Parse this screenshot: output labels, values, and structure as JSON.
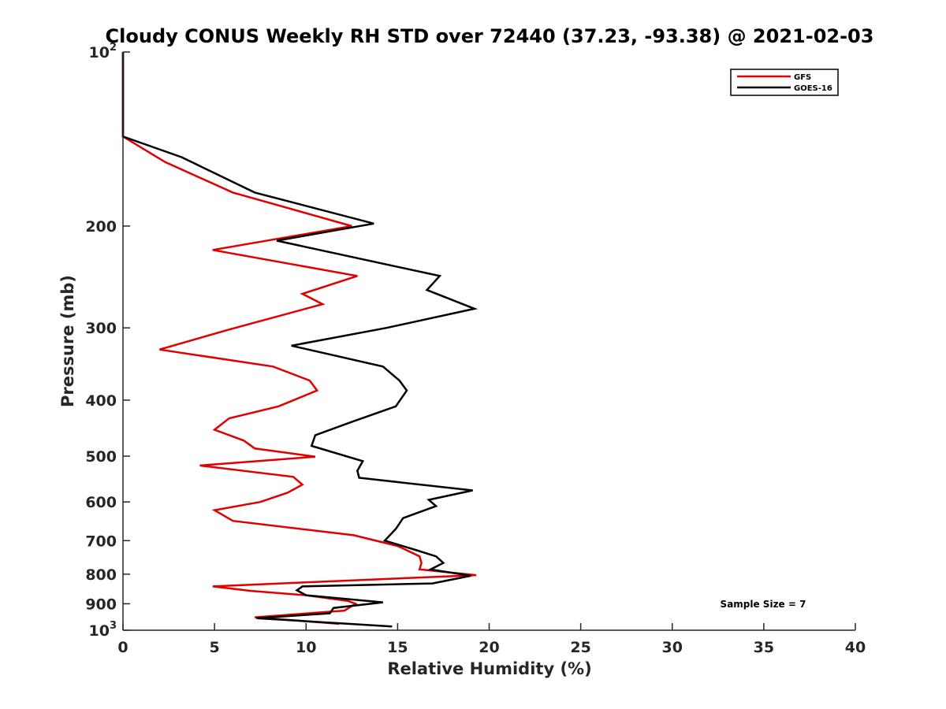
{
  "chart_data": {
    "type": "line",
    "title": "Cloudy CONUS Weekly RH STD over 72440 (37.23, -93.38) @ 2021-02-03",
    "xlabel": "Relative Humidity (%)",
    "ylabel": "Pressure (mb)",
    "xlim": [
      0,
      40
    ],
    "ylim": [
      100,
      1000
    ],
    "y_scale": "log",
    "y_reversed": true,
    "x_ticks": [
      "0",
      "5",
      "10",
      "15",
      "20",
      "25",
      "30",
      "35",
      "40"
    ],
    "y_ticks": [
      {
        "value": 100,
        "base": "10",
        "exp": "2"
      },
      {
        "value": 200,
        "label": "200"
      },
      {
        "value": 300,
        "label": "300"
      },
      {
        "value": 400,
        "label": "400"
      },
      {
        "value": 500,
        "label": "500"
      },
      {
        "value": 600,
        "label": "600"
      },
      {
        "value": 700,
        "label": "700"
      },
      {
        "value": 800,
        "label": "800"
      },
      {
        "value": 900,
        "label": "900"
      },
      {
        "value": 1000,
        "base": "10",
        "exp": "3"
      }
    ],
    "legend_position": "top-right",
    "annotation": "Sample Size = 7",
    "series": [
      {
        "name": "GFS",
        "color": "#e00000",
        "points": [
          [
            11.8,
            975
          ],
          [
            7.2,
            950
          ],
          [
            12.1,
            925
          ],
          [
            12.7,
            900
          ],
          [
            12.3,
            890
          ],
          [
            10.0,
            870
          ],
          [
            7.0,
            855
          ],
          [
            4.9,
            840
          ],
          [
            10.5,
            825
          ],
          [
            19.3,
            803
          ],
          [
            16.2,
            785
          ],
          [
            16.3,
            765
          ],
          [
            16.2,
            745
          ],
          [
            15.0,
            715
          ],
          [
            12.6,
            685
          ],
          [
            6.0,
            647
          ],
          [
            5.0,
            620
          ],
          [
            7.5,
            600
          ],
          [
            9.0,
            578
          ],
          [
            9.8,
            560
          ],
          [
            9.3,
            543
          ],
          [
            4.2,
            519
          ],
          [
            10.5,
            501
          ],
          [
            7.2,
            485
          ],
          [
            6.6,
            470
          ],
          [
            5.0,
            450
          ],
          [
            5.8,
            430
          ],
          [
            8.5,
            410
          ],
          [
            10.6,
            385
          ],
          [
            10.2,
            370
          ],
          [
            8.2,
            350
          ],
          [
            2.0,
            327
          ],
          [
            5.8,
            302
          ],
          [
            10.9,
            273
          ],
          [
            9.8,
            262
          ],
          [
            12.8,
            244
          ],
          [
            4.9,
            220
          ],
          [
            12.5,
            200
          ],
          [
            6.0,
            175
          ],
          [
            2.3,
            155
          ],
          [
            0.0,
            140
          ],
          [
            0.0,
            100
          ]
        ]
      },
      {
        "name": "GOES-16",
        "color": "#000000",
        "points": [
          [
            14.7,
            985
          ],
          [
            7.3,
            953
          ],
          [
            11.3,
            935
          ],
          [
            11.5,
            915
          ],
          [
            14.2,
            895
          ],
          [
            10.0,
            870
          ],
          [
            9.5,
            853
          ],
          [
            9.8,
            840
          ],
          [
            16.9,
            830
          ],
          [
            19.0,
            805
          ],
          [
            16.8,
            785
          ],
          [
            17.5,
            765
          ],
          [
            17.1,
            745
          ],
          [
            15.9,
            725
          ],
          [
            14.3,
            700
          ],
          [
            14.9,
            668
          ],
          [
            15.3,
            640
          ],
          [
            17.1,
            610
          ],
          [
            16.7,
            595
          ],
          [
            19.1,
            573
          ],
          [
            12.9,
            545
          ],
          [
            12.8,
            530
          ],
          [
            13.1,
            510
          ],
          [
            10.3,
            480
          ],
          [
            10.5,
            460
          ],
          [
            12.6,
            435
          ],
          [
            14.9,
            410
          ],
          [
            15.5,
            385
          ],
          [
            15.1,
            370
          ],
          [
            14.2,
            350
          ],
          [
            9.2,
            322
          ],
          [
            14.4,
            300
          ],
          [
            19.2,
            278
          ],
          [
            16.6,
            258
          ],
          [
            17.3,
            244
          ],
          [
            8.4,
            212
          ],
          [
            13.7,
            198
          ],
          [
            7.2,
            175
          ],
          [
            3.2,
            152
          ],
          [
            0.0,
            140
          ],
          [
            0.0,
            100
          ]
        ]
      }
    ]
  }
}
